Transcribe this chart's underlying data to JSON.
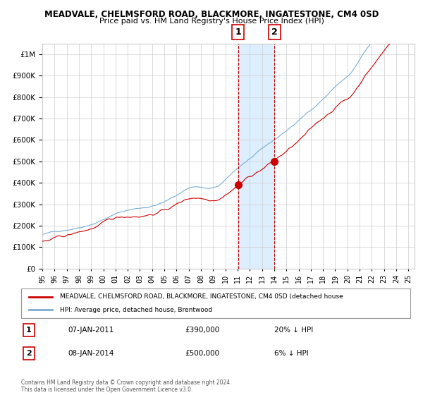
{
  "title": "MEADVALE, CHELMSFORD ROAD, BLACKMORE, INGATESTONE, CM4 0SD",
  "subtitle": "Price paid vs. HM Land Registry's House Price Index (HPI)",
  "legend_line1": "MEADVALE, CHELMSFORD ROAD, BLACKMORE, INGATESTONE, CM4 0SD (detached house",
  "legend_line2": "HPI: Average price, detached house, Brentwood",
  "annotation1_date": "07-JAN-2011",
  "annotation1_price": "£390,000",
  "annotation1_hpi": "20% ↓ HPI",
  "annotation2_date": "08-JAN-2014",
  "annotation2_price": "£500,000",
  "annotation2_hpi": "6% ↓ HPI",
  "footer": "Contains HM Land Registry data © Crown copyright and database right 2024.\nThis data is licensed under the Open Government Licence v3.0.",
  "hpi_color": "#7aadd4",
  "price_color": "#cc0000",
  "marker_color": "#cc0000",
  "vline_color": "#cc0000",
  "shade_color": "#ddeeff",
  "background_color": "#ffffff",
  "grid_color": "#cccccc",
  "ylim": [
    0,
    1050000
  ],
  "sale1_year": 2011.03,
  "sale2_year": 2014.03
}
